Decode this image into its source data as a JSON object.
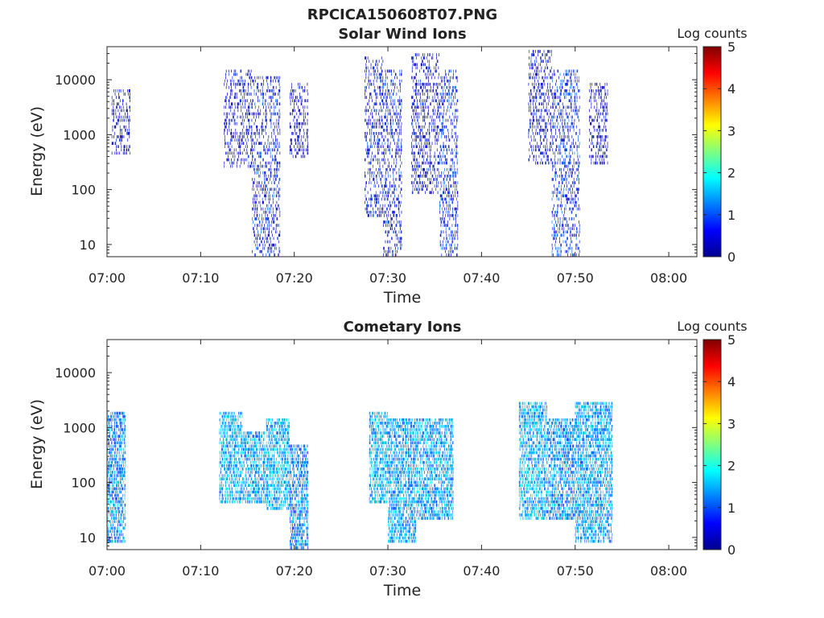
{
  "figure": {
    "title": "RPCICA150608T07.PNG"
  },
  "chart_data": [
    {
      "type": "heatmap",
      "title": "Solar Wind Ions",
      "xlabel": "Time",
      "ylabel": "Energy (eV)",
      "y_scale": "log",
      "ylim": [
        6,
        40000
      ],
      "xlim": [
        "07:00",
        "08:03"
      ],
      "x_ticks": [
        "07:00",
        "07:10",
        "07:20",
        "07:30",
        "07:40",
        "07:50",
        "08:00"
      ],
      "y_ticks": [
        "10",
        "100",
        "1000",
        "10000"
      ],
      "colorbar": {
        "label": "Log counts",
        "ticks": [
          "0",
          "1",
          "2",
          "3",
          "4",
          "5"
        ],
        "range": [
          0,
          5
        ],
        "colormap": "jet"
      },
      "bursts": [
        {
          "t_start": "07:00.5",
          "t_end": "07:02.5",
          "e_min": 400,
          "e_max": 7000,
          "log_counts": 0.3
        },
        {
          "t_start": "07:12.5",
          "t_end": "07:15.5",
          "e_min": 250,
          "e_max": 15000,
          "log_counts": 0.4
        },
        {
          "t_start": "07:15.5",
          "t_end": "07:18.5",
          "e_min": 6,
          "e_max": 12000,
          "log_counts": 0.6
        },
        {
          "t_start": "07:19.5",
          "t_end": "07:21.5",
          "e_min": 350,
          "e_max": 9000,
          "log_counts": 0.3
        },
        {
          "t_start": "07:27.5",
          "t_end": "07:29.5",
          "e_min": 30,
          "e_max": 25000,
          "log_counts": 0.5
        },
        {
          "t_start": "07:29.5",
          "t_end": "07:31.5",
          "e_min": 6,
          "e_max": 15000,
          "log_counts": 0.6
        },
        {
          "t_start": "07:32.5",
          "t_end": "07:35.5",
          "e_min": 80,
          "e_max": 30000,
          "log_counts": 0.4
        },
        {
          "t_start": "07:35.5",
          "t_end": "07:37.5",
          "e_min": 6,
          "e_max": 15000,
          "log_counts": 0.7
        },
        {
          "t_start": "07:45",
          "t_end": "07:47.5",
          "e_min": 300,
          "e_max": 35000,
          "log_counts": 0.4
        },
        {
          "t_start": "07:47.5",
          "t_end": "07:50.5",
          "e_min": 6,
          "e_max": 15000,
          "log_counts": 0.7
        },
        {
          "t_start": "07:51.5",
          "t_end": "07:53.5",
          "e_min": 300,
          "e_max": 9000,
          "log_counts": 0.3
        }
      ]
    },
    {
      "type": "heatmap",
      "title": "Cometary Ions",
      "xlabel": "Time",
      "ylabel": "Energy (eV)",
      "y_scale": "log",
      "ylim": [
        6,
        40000
      ],
      "xlim": [
        "07:00",
        "08:03"
      ],
      "x_ticks": [
        "07:00",
        "07:10",
        "07:20",
        "07:30",
        "07:40",
        "07:50",
        "08:00"
      ],
      "y_ticks": [
        "10",
        "100",
        "1000",
        "10000"
      ],
      "colorbar": {
        "label": "Log counts",
        "ticks": [
          "0",
          "1",
          "2",
          "3",
          "4",
          "5"
        ],
        "range": [
          0,
          5
        ],
        "colormap": "jet"
      },
      "bursts": [
        {
          "t_start": "07:00",
          "t_end": "07:02",
          "e_min": 8,
          "e_max": 2000,
          "log_counts": 1.3
        },
        {
          "t_start": "07:12",
          "t_end": "07:14.5",
          "e_min": 40,
          "e_max": 2000,
          "log_counts": 1.5
        },
        {
          "t_start": "07:14.5",
          "t_end": "07:17",
          "e_min": 40,
          "e_max": 800,
          "log_counts": 1.4
        },
        {
          "t_start": "07:17",
          "t_end": "07:19.5",
          "e_min": 30,
          "e_max": 1500,
          "log_counts": 1.5
        },
        {
          "t_start": "07:19.5",
          "t_end": "07:21.5",
          "e_min": 6,
          "e_max": 500,
          "log_counts": 1.2
        },
        {
          "t_start": "07:28",
          "t_end": "07:30",
          "e_min": 40,
          "e_max": 2000,
          "log_counts": 1.5
        },
        {
          "t_start": "07:30",
          "t_end": "07:33",
          "e_min": 8,
          "e_max": 1500,
          "log_counts": 1.4
        },
        {
          "t_start": "07:33",
          "t_end": "07:37",
          "e_min": 20,
          "e_max": 1500,
          "log_counts": 1.4
        },
        {
          "t_start": "07:44",
          "t_end": "07:47",
          "e_min": 20,
          "e_max": 3000,
          "log_counts": 1.5
        },
        {
          "t_start": "07:47",
          "t_end": "07:50",
          "e_min": 20,
          "e_max": 1500,
          "log_counts": 1.3
        },
        {
          "t_start": "07:50",
          "t_end": "07:54",
          "e_min": 8,
          "e_max": 3000,
          "log_counts": 1.4
        }
      ]
    }
  ]
}
